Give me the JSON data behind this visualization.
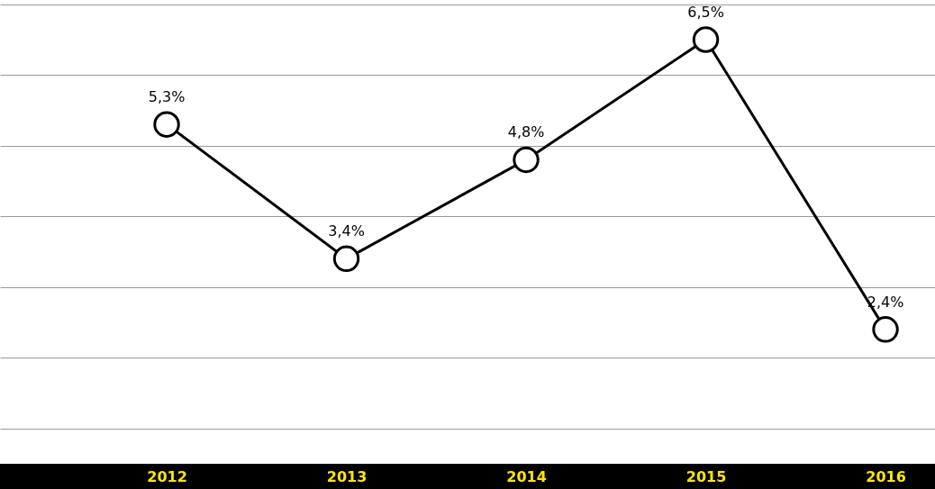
{
  "chart_data": {
    "type": "line",
    "categories": [
      "2012",
      "2013",
      "2014",
      "2015",
      "2016"
    ],
    "series": [
      {
        "color": "#000000",
        "values": [
          5.3,
          3.4,
          4.8,
          6.5,
          2.4
        ],
        "value_labels": [
          "5,3%",
          "3,4%",
          "4,8%",
          "6,5%",
          "2,4%"
        ]
      }
    ],
    "ylim": [
      0.5,
      7.06
    ],
    "yticks": [
      {
        "value": 1,
        "label": null
      },
      {
        "value": 2,
        "label": null
      },
      {
        "value": 3,
        "label": null
      },
      {
        "value": 4,
        "label": null
      },
      {
        "value": 5,
        "label": null
      },
      {
        "value": 6,
        "label": null
      },
      {
        "value": 7,
        "label": null
      }
    ],
    "grid": "y",
    "tick_labels": "x",
    "marker": "circle",
    "line_style": "solid"
  }
}
